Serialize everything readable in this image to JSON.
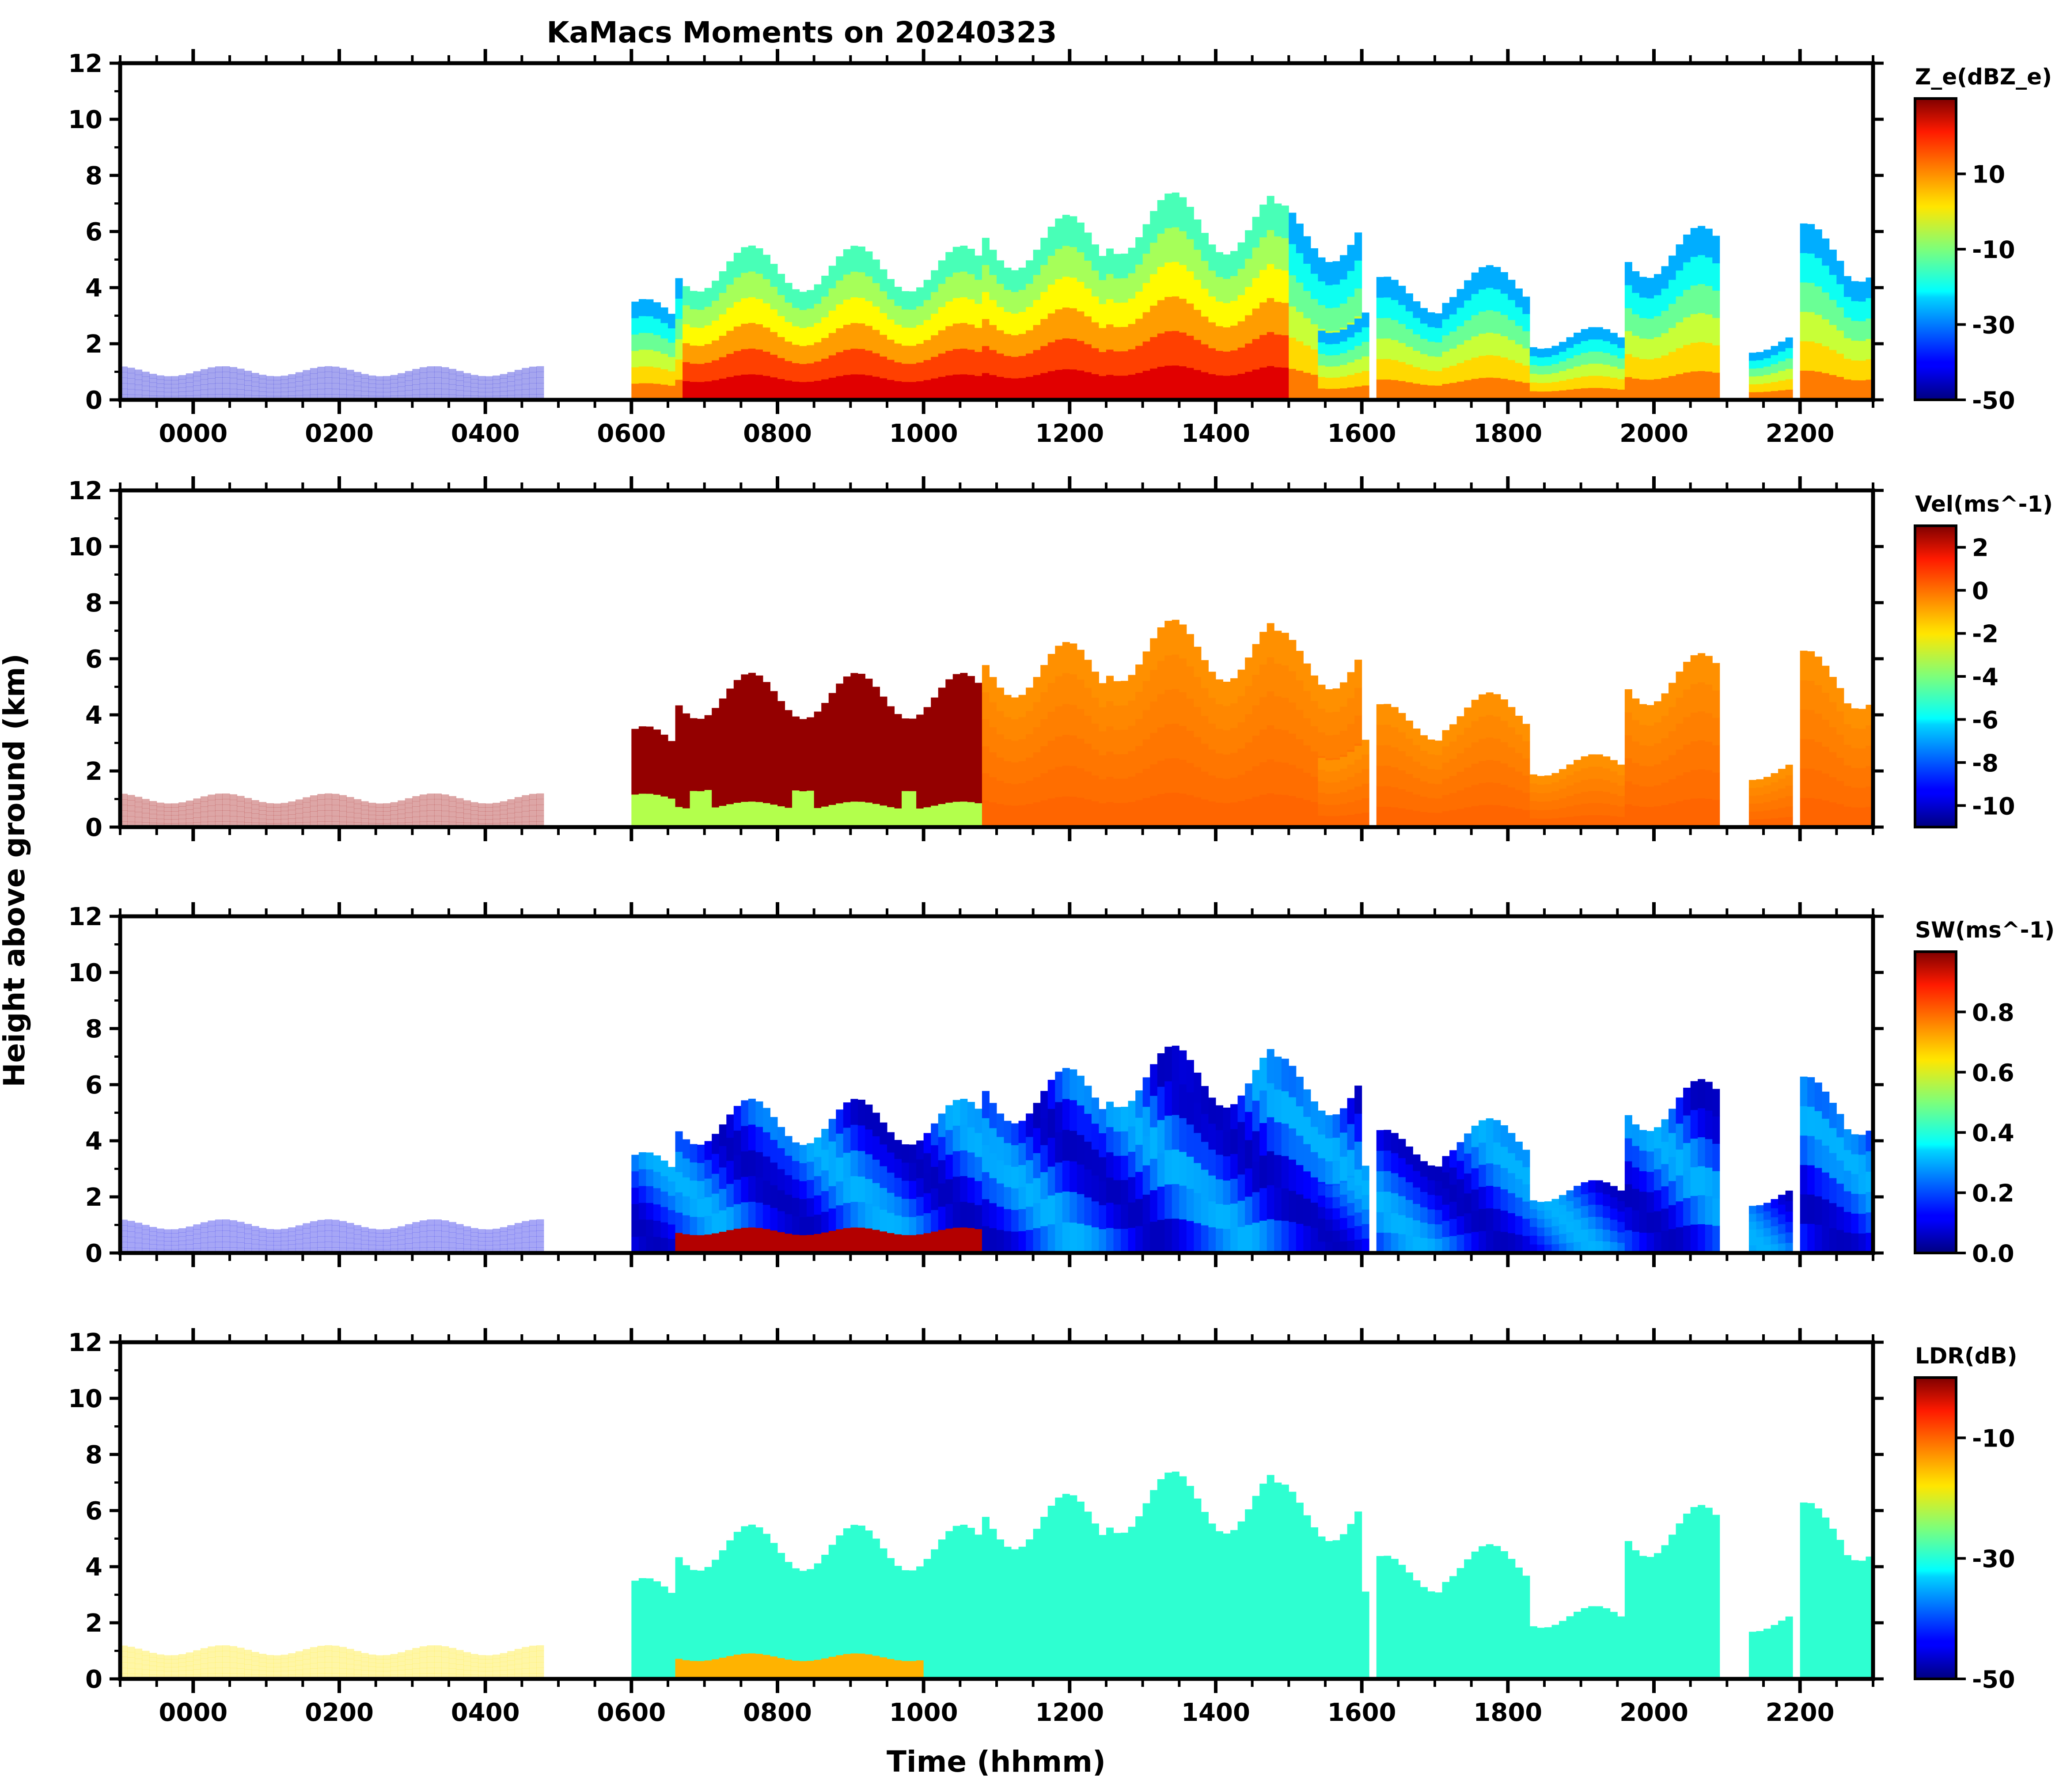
{
  "figure": {
    "title": "KaMacs Moments on 20240323",
    "ylabel": "Height above ground (km)",
    "xlabel": "Time (hhmm)"
  },
  "chart_data": [
    {
      "type": "heatmap",
      "panel": "Ze",
      "colorbar_label": "Z_e(dBZ_e)",
      "xlim": [
        -100,
        2300
      ],
      "ylim": [
        0,
        12
      ],
      "yticks": [
        0,
        2,
        4,
        6,
        8,
        10,
        12
      ],
      "xticks": [
        "0000",
        "0200",
        "0400",
        "0600",
        "0800",
        "1000",
        "1200",
        "1400",
        "1600",
        "1800",
        "2000",
        "2200"
      ],
      "clim": [
        -50,
        30
      ],
      "cticks": [
        -50,
        -30,
        -10,
        10
      ],
      "colormap": "jet"
    },
    {
      "type": "heatmap",
      "panel": "Vel",
      "colorbar_label": "Vel(ms^-1)",
      "xlim": [
        -100,
        2300
      ],
      "ylim": [
        0,
        12
      ],
      "yticks": [
        0,
        2,
        4,
        6,
        8,
        10,
        12
      ],
      "clim": [
        -11,
        3
      ],
      "cticks": [
        -10,
        -8,
        -6,
        -4,
        -2,
        0,
        2
      ],
      "colormap": "jet"
    },
    {
      "type": "heatmap",
      "panel": "SW",
      "colorbar_label": "SW(ms^-1)",
      "xlim": [
        -100,
        2300
      ],
      "ylim": [
        0,
        12
      ],
      "yticks": [
        0,
        2,
        4,
        6,
        8,
        10,
        12
      ],
      "clim": [
        0,
        1
      ],
      "cticks": [
        "0.0",
        "0.2",
        "0.4",
        "0.6",
        "0.8"
      ],
      "colormap": "jet"
    },
    {
      "type": "heatmap",
      "panel": "LDR",
      "colorbar_label": "LDR(dB)",
      "xlim": [
        -100,
        2300
      ],
      "ylim": [
        0,
        12
      ],
      "yticks": [
        0,
        2,
        4,
        6,
        8,
        10,
        12
      ],
      "xticks": [
        "0000",
        "0200",
        "0400",
        "0600",
        "0800",
        "1000",
        "1200",
        "1400",
        "1600",
        "1800",
        "2000",
        "2200"
      ],
      "clim": [
        -50,
        0
      ],
      "cticks": [
        -50,
        -30,
        -10
      ],
      "colormap": "jet"
    }
  ]
}
